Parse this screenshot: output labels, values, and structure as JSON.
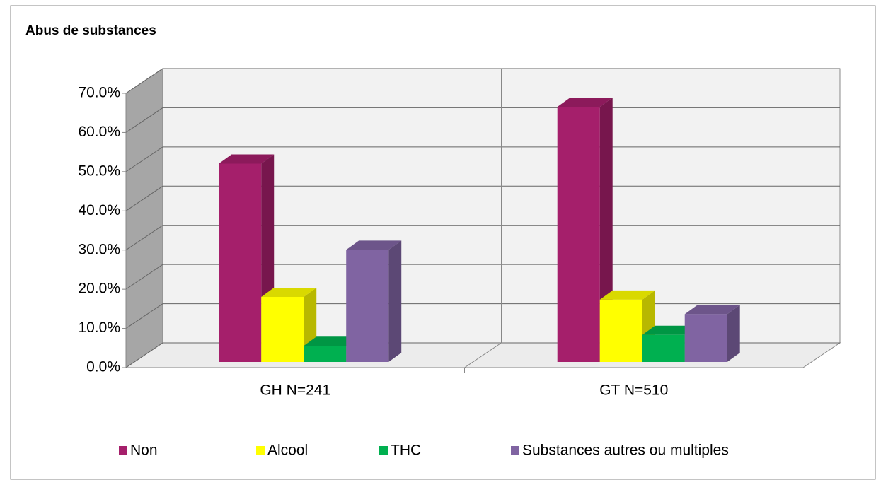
{
  "chart_data": {
    "type": "bar3d",
    "title": "Abus de substances",
    "categories": [
      "GH N=241",
      "GT N=510"
    ],
    "series": [
      {
        "name": "Non",
        "color": "#a51f6b",
        "values": [
          50.6,
          65.1
        ]
      },
      {
        "name": "Alcool",
        "color": "#ffff00",
        "values": [
          16.6,
          15.9
        ]
      },
      {
        "name": "THC",
        "color": "#00b050",
        "values": [
          4.1,
          6.9
        ]
      },
      {
        "name": "Substances autres ou multiples",
        "color": "#8064a2",
        "values": [
          28.6,
          12.2
        ]
      }
    ],
    "ylim": [
      0,
      70
    ],
    "yticks": [
      {
        "value": 0,
        "label": "0.0%"
      },
      {
        "value": 10,
        "label": "10.0%"
      },
      {
        "value": 20,
        "label": "20.0%"
      },
      {
        "value": 30,
        "label": "30.0%"
      },
      {
        "value": 40,
        "label": "40.0%"
      },
      {
        "value": 50,
        "label": "50.0%"
      },
      {
        "value": 60,
        "label": "60.0%"
      },
      {
        "value": 70,
        "label": "70.0%"
      }
    ],
    "grid": true,
    "legend": "bottom"
  }
}
